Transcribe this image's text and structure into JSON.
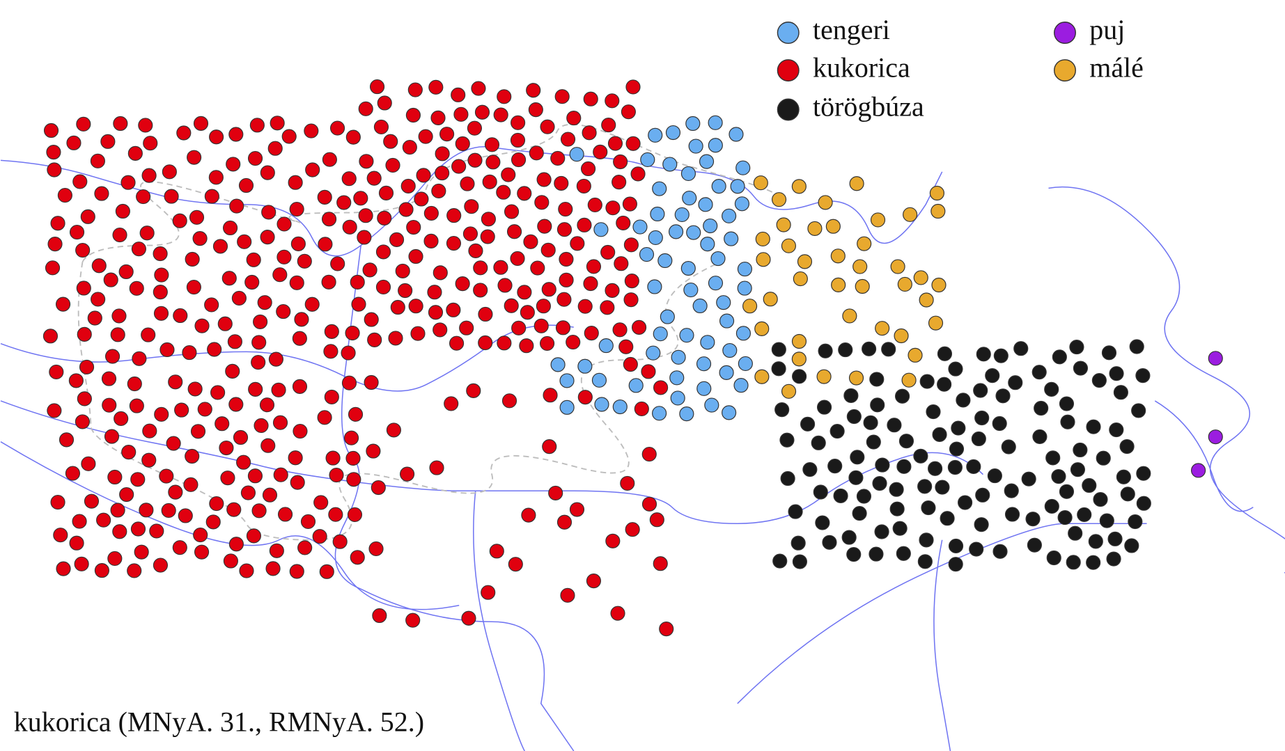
{
  "legend": [
    {
      "label": "tengeri",
      "color": "#6aaef0"
    },
    {
      "label": "kukorica",
      "color": "#e0000f"
    },
    {
      "label": "törögbúza",
      "color": "#1a1a1a"
    },
    {
      "label": "puj",
      "color": "#9b1de0"
    },
    {
      "label": "málé",
      "color": "#e8a92e"
    }
  ],
  "caption": "kukorica (MNyA. 31., RMNyA. 52.)"
}
